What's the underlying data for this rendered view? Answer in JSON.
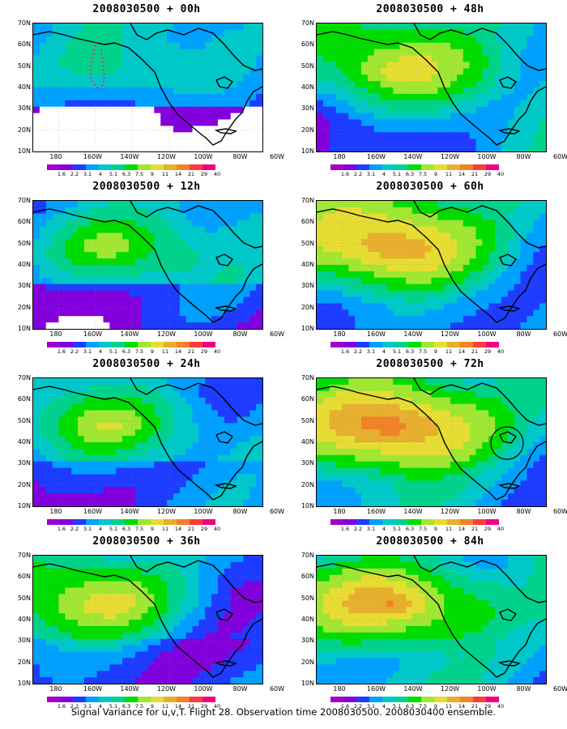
{
  "panels": [
    {
      "title": "2008030500 + 00h",
      "peak": 0.25,
      "spread": 0.4
    },
    {
      "title": "2008030500 + 48h",
      "peak": 0.65,
      "spread": 0.9
    },
    {
      "title": "2008030500 + 12h",
      "peak": 0.45,
      "spread": 0.55
    },
    {
      "title": "2008030500 + 60h",
      "peak": 0.7,
      "spread": 0.95
    },
    {
      "title": "2008030500 + 24h",
      "peak": 0.55,
      "spread": 0.7
    },
    {
      "title": "2008030500 + 72h",
      "peak": 0.8,
      "spread": 1.0
    },
    {
      "title": "2008030500 + 36h",
      "peak": 0.6,
      "spread": 0.8
    },
    {
      "title": "2008030500 + 84h",
      "peak": 0.85,
      "spread": 1.0
    }
  ],
  "lat_labels": [
    "70N",
    "60N",
    "50N",
    "40N",
    "30N",
    "20N",
    "10N"
  ],
  "lon_labels": [
    "180",
    "160W",
    "140W",
    "120W",
    "100W",
    "80W",
    "60W"
  ],
  "colorbar": {
    "labels": [
      "1.6",
      "2.2",
      "3.1",
      "4",
      "5.1",
      "6.3",
      "7.5",
      "9",
      "11",
      "14",
      "21",
      "29",
      "40"
    ],
    "colors": [
      "#a000c8",
      "#8200dc",
      "#1e3cff",
      "#00a0ff",
      "#00c8c8",
      "#00d28c",
      "#00dc00",
      "#a0e632",
      "#e6dc32",
      "#e6af2d",
      "#f08228",
      "#fa3c3c",
      "#f00082"
    ]
  },
  "footer": "Signal Variance for u,v,T. Flight 28. Observation time 2008030500. 2008030400 ensemble."
}
